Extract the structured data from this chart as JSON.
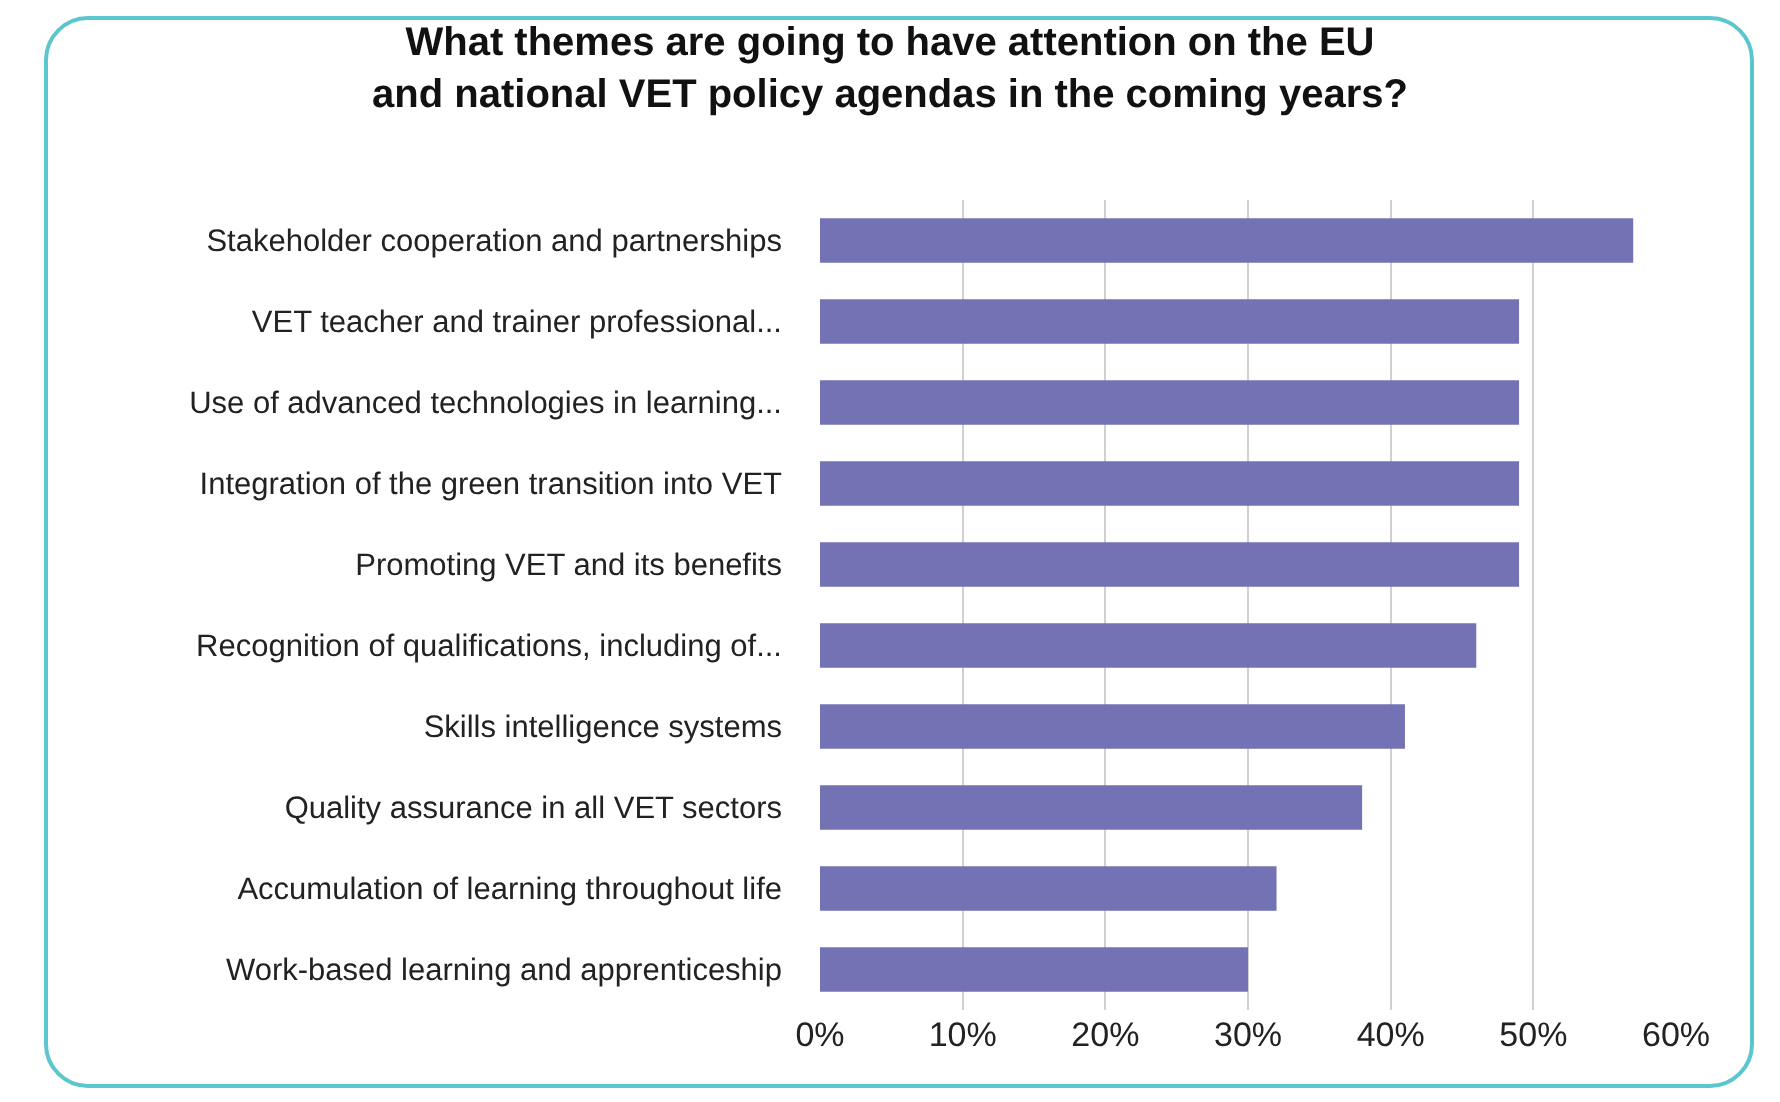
{
  "chart_data": {
    "type": "bar",
    "orientation": "horizontal",
    "title": "What themes are going to have attention on the EU\nand national VET policy agendas in the coming years?",
    "categories": [
      "Stakeholder cooperation and partnerships",
      "VET teacher and trainer professional...",
      "Use of advanced technologies in learning...",
      "Integration of the green transition into VET",
      "Promoting VET and its benefits",
      "Recognition of qualifications, including of...",
      "Skills intelligence systems",
      "Quality assurance in all VET sectors",
      "Accumulation of learning throughout life",
      "Work-based learning and apprenticeship"
    ],
    "values": [
      57,
      49,
      49,
      49,
      49,
      46,
      41,
      38,
      32,
      30
    ],
    "color": "#7272b4",
    "xlim": [
      0,
      60
    ],
    "xticks": [
      {
        "value": 0,
        "label": "0%"
      },
      {
        "value": 10,
        "label": "10%"
      },
      {
        "value": 20,
        "label": "20%"
      },
      {
        "value": 30,
        "label": "30%"
      },
      {
        "value": 40,
        "label": "40%"
      },
      {
        "value": 50,
        "label": "50%"
      },
      {
        "value": 60,
        "label": "60%"
      }
    ],
    "grid": "x"
  }
}
